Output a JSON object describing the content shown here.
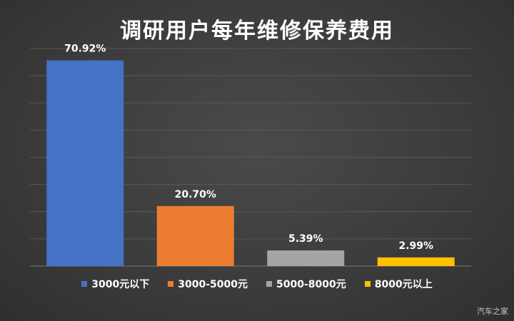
{
  "chart_data": {
    "type": "bar",
    "title": "调研用户每年维修保养费用",
    "categories": [
      "3000元以下",
      "3000-5000元",
      "5000-8000元",
      "8000元以上"
    ],
    "values": [
      70.92,
      20.7,
      5.39,
      2.99
    ],
    "data_labels": [
      "70.92%",
      "20.70%",
      "5.39%",
      "2.99%"
    ],
    "colors": [
      "#4472c4",
      "#ed7d31",
      "#a5a5a5",
      "#ffc000"
    ],
    "ylim": [
      0,
      75
    ],
    "grid": true,
    "legend": "bottom"
  },
  "watermark": "汽车之家"
}
